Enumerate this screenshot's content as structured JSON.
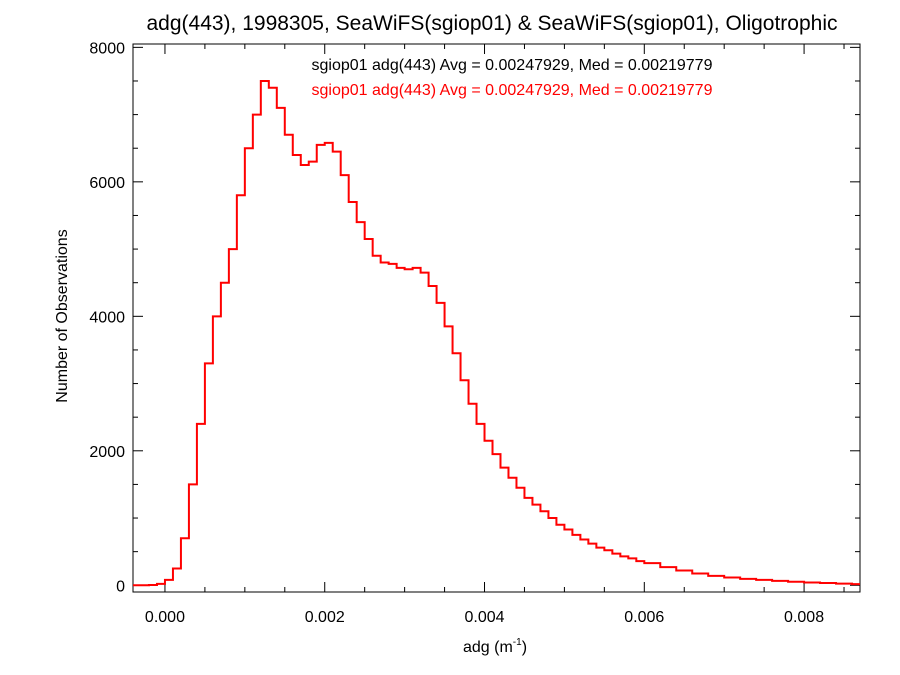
{
  "chart_data": {
    "type": "line",
    "style": "step-histogram",
    "title": "adg(443), 1998305, SeaWiFS(sgiop01) & SeaWiFS(sgiop01), Oligotrophic",
    "xlabel": "adg (m",
    "xlabel_sup": "-1",
    "xlabel_close": ")",
    "ylabel": "Number of Observations",
    "xlim": [
      -0.0004,
      0.0087
    ],
    "ylim": [
      -100,
      8050
    ],
    "xticks": [
      0.0,
      0.002,
      0.004,
      0.006,
      0.008
    ],
    "xtick_labels": [
      "0.000",
      "0.002",
      "0.004",
      "0.006",
      "0.008"
    ],
    "yticks": [
      0,
      2000,
      4000,
      6000,
      8000
    ],
    "ytick_labels": [
      "0",
      "2000",
      "4000",
      "6000",
      "8000"
    ],
    "grid": false,
    "annotations": [
      {
        "text": "sgiop01 adg(443) Avg = 0.00247929, Med = 0.00219779",
        "color": "#000000"
      },
      {
        "text": "sgiop01 adg(443) Avg = 0.00247929, Med = 0.00219779",
        "color": "#ff0000"
      }
    ],
    "series": [
      {
        "color": "#ff0000",
        "points": [
          [
            -0.0004,
            0
          ],
          [
            -0.0002,
            5
          ],
          [
            -0.0001,
            20
          ],
          [
            0.0,
            80
          ],
          [
            0.0001,
            250
          ],
          [
            0.0002,
            700
          ],
          [
            0.0003,
            1500
          ],
          [
            0.0004,
            2400
          ],
          [
            0.0005,
            3300
          ],
          [
            0.0006,
            4000
          ],
          [
            0.0007,
            4500
          ],
          [
            0.0008,
            5000
          ],
          [
            0.0009,
            5800
          ],
          [
            0.001,
            6500
          ],
          [
            0.0011,
            7000
          ],
          [
            0.0012,
            7500
          ],
          [
            0.0013,
            7400
          ],
          [
            0.0014,
            7100
          ],
          [
            0.0015,
            6700
          ],
          [
            0.0016,
            6400
          ],
          [
            0.0017,
            6250
          ],
          [
            0.0018,
            6300
          ],
          [
            0.0019,
            6550
          ],
          [
            0.002,
            6580
          ],
          [
            0.0021,
            6450
          ],
          [
            0.0022,
            6100
          ],
          [
            0.0023,
            5700
          ],
          [
            0.0024,
            5400
          ],
          [
            0.0025,
            5150
          ],
          [
            0.0026,
            4900
          ],
          [
            0.0027,
            4800
          ],
          [
            0.0028,
            4780
          ],
          [
            0.0029,
            4720
          ],
          [
            0.003,
            4700
          ],
          [
            0.0031,
            4720
          ],
          [
            0.0032,
            4650
          ],
          [
            0.0033,
            4450
          ],
          [
            0.0034,
            4200
          ],
          [
            0.0035,
            3850
          ],
          [
            0.0036,
            3450
          ],
          [
            0.0037,
            3050
          ],
          [
            0.0038,
            2700
          ],
          [
            0.0039,
            2400
          ],
          [
            0.004,
            2150
          ],
          [
            0.0041,
            1950
          ],
          [
            0.0042,
            1750
          ],
          [
            0.0043,
            1600
          ],
          [
            0.0044,
            1450
          ],
          [
            0.0045,
            1300
          ],
          [
            0.0046,
            1200
          ],
          [
            0.0047,
            1100
          ],
          [
            0.0048,
            1000
          ],
          [
            0.0049,
            900
          ],
          [
            0.005,
            830
          ],
          [
            0.0051,
            750
          ],
          [
            0.0052,
            680
          ],
          [
            0.0053,
            620
          ],
          [
            0.0054,
            560
          ],
          [
            0.0055,
            520
          ],
          [
            0.0056,
            470
          ],
          [
            0.0057,
            430
          ],
          [
            0.0058,
            400
          ],
          [
            0.0059,
            360
          ],
          [
            0.006,
            330
          ],
          [
            0.0062,
            270
          ],
          [
            0.0064,
            220
          ],
          [
            0.0066,
            175
          ],
          [
            0.0068,
            140
          ],
          [
            0.007,
            115
          ],
          [
            0.0072,
            95
          ],
          [
            0.0074,
            80
          ],
          [
            0.0076,
            65
          ],
          [
            0.0078,
            52
          ],
          [
            0.008,
            42
          ],
          [
            0.0082,
            33
          ],
          [
            0.0084,
            25
          ],
          [
            0.0086,
            18
          ]
        ]
      }
    ]
  }
}
